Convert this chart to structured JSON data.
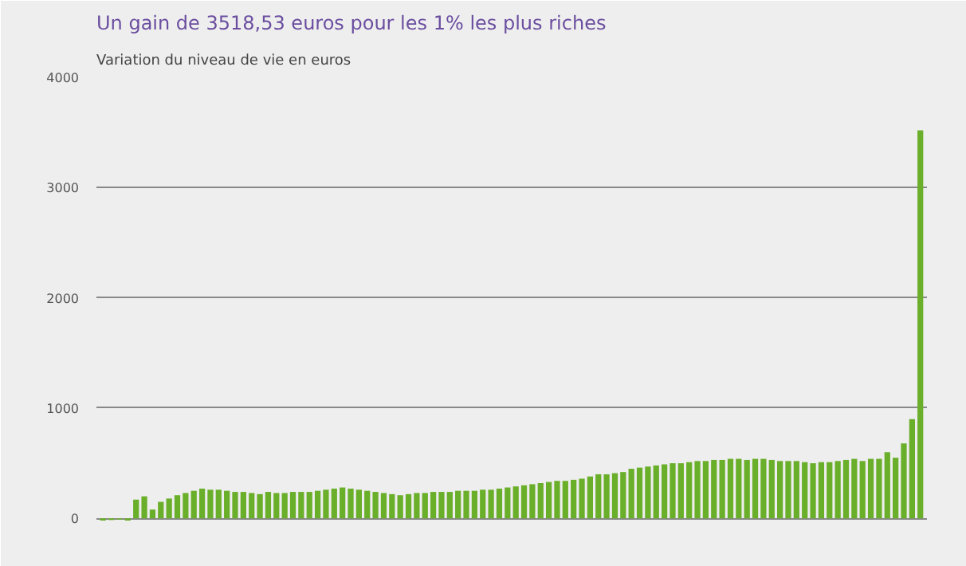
{
  "chart_data": {
    "type": "bar",
    "title": "Un gain de 3518,53 euros pour les 1% les plus riches",
    "subtitle": "Variation du niveau de vie en euros",
    "categories": [
      null,
      null,
      null,
      null,
      null,
      null,
      null,
      null,
      null,
      null,
      null,
      null,
      null,
      null,
      null,
      null,
      null,
      null,
      null,
      null,
      null,
      null,
      null,
      null,
      null,
      null,
      null,
      null,
      null,
      null,
      null,
      null,
      null,
      null,
      null,
      null,
      null,
      null,
      null,
      null,
      null,
      null,
      null,
      null,
      null,
      null,
      null,
      null,
      null,
      null,
      null,
      null,
      null,
      null,
      null,
      null,
      null,
      null,
      null,
      null,
      null,
      null,
      null,
      null,
      null,
      null,
      null,
      null,
      null,
      null,
      null,
      null,
      null,
      null,
      null,
      null,
      null,
      null,
      null,
      null,
      null,
      null,
      null,
      null,
      null,
      null,
      null,
      null,
      null,
      null,
      null,
      null,
      null,
      null,
      null,
      null,
      null,
      null,
      null,
      null
    ],
    "values": [
      -20,
      -15,
      -10,
      -20,
      170,
      200,
      80,
      150,
      180,
      210,
      230,
      250,
      270,
      260,
      260,
      250,
      240,
      240,
      230,
      220,
      240,
      230,
      230,
      240,
      240,
      240,
      250,
      260,
      270,
      280,
      270,
      260,
      250,
      240,
      230,
      220,
      210,
      220,
      230,
      230,
      240,
      240,
      240,
      250,
      250,
      250,
      260,
      260,
      270,
      280,
      290,
      300,
      310,
      320,
      330,
      340,
      340,
      350,
      360,
      380,
      400,
      400,
      410,
      420,
      450,
      460,
      470,
      480,
      490,
      500,
      500,
      510,
      520,
      520,
      530,
      530,
      540,
      540,
      530,
      540,
      540,
      530,
      520,
      520,
      520,
      510,
      500,
      510,
      510,
      520,
      530,
      540,
      520,
      540,
      540,
      600,
      550,
      680,
      900,
      3518.53
    ],
    "color": "#6aaf2a",
    "ylim": [
      -150,
      4000
    ],
    "yticks": [
      0,
      1000,
      2000,
      3000,
      4000
    ],
    "grid": "y"
  }
}
